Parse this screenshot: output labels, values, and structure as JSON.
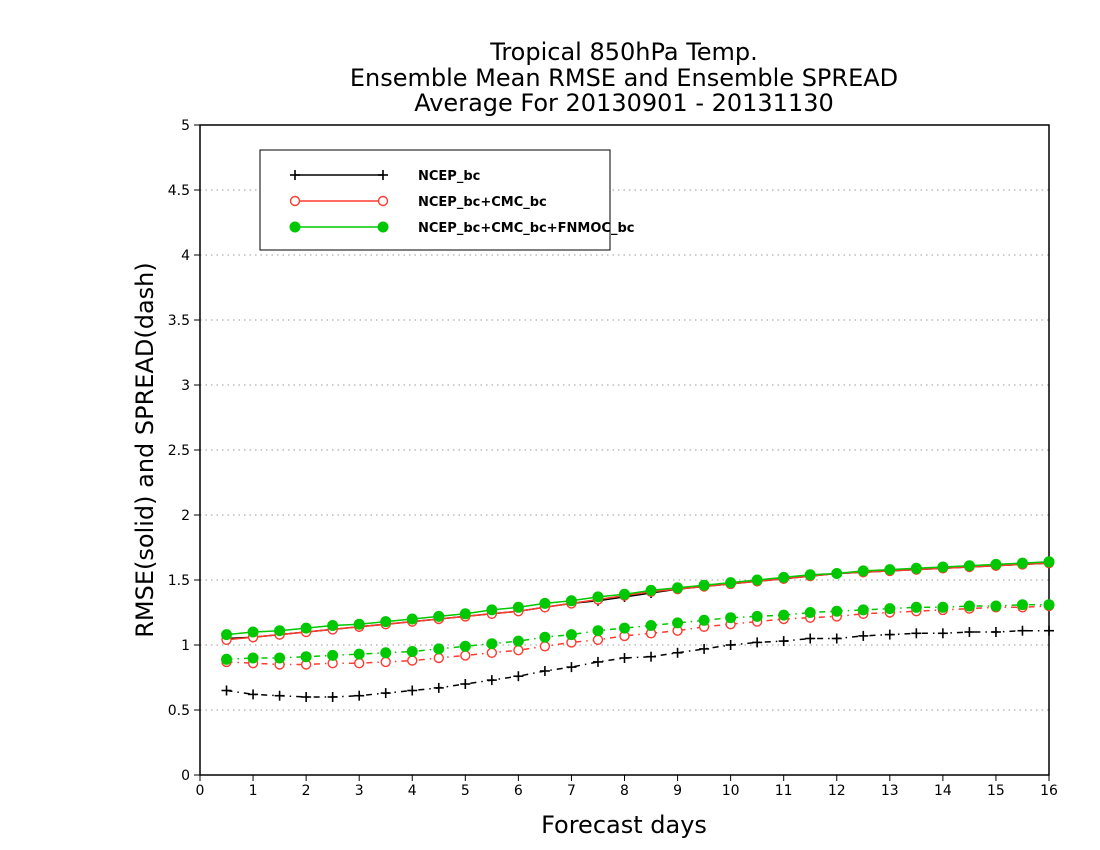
{
  "chart_data": {
    "type": "line",
    "title_lines": [
      "Tropical 850hPa Temp.",
      "Ensemble Mean RMSE and Ensemble SPREAD",
      "Average For 20130901 - 20131130"
    ],
    "xlabel": "Forecast days",
    "ylabel": "RMSE(solid) and SPREAD(dash)",
    "xlim": [
      0,
      16
    ],
    "ylim": [
      0,
      5
    ],
    "xticks": [
      "0",
      "1",
      "2",
      "3",
      "4",
      "5",
      "6",
      "7",
      "8",
      "9",
      "10",
      "11",
      "12",
      "13",
      "14",
      "15",
      "16"
    ],
    "yticks": [
      "0",
      "0.5",
      "1",
      "1.5",
      "2",
      "2.5",
      "3",
      "3.5",
      "4",
      "4.5",
      "5"
    ],
    "grid": true,
    "legend_position": "top-left",
    "x": [
      0.5,
      1,
      1.5,
      2,
      2.5,
      3,
      3.5,
      4,
      4.5,
      5,
      5.5,
      6,
      6.5,
      7,
      7.5,
      8,
      8.5,
      9,
      9.5,
      10,
      10.5,
      11,
      11.5,
      12,
      12.5,
      13,
      13.5,
      14,
      14.5,
      15,
      15.5,
      16
    ],
    "series": [
      {
        "name": "NCEP_bc",
        "color": "#000000",
        "marker": "plus",
        "rmse": [
          1.05,
          1.06,
          1.08,
          1.1,
          1.12,
          1.14,
          1.16,
          1.18,
          1.2,
          1.22,
          1.24,
          1.26,
          1.29,
          1.32,
          1.34,
          1.37,
          1.4,
          1.43,
          1.45,
          1.47,
          1.49,
          1.51,
          1.53,
          1.55,
          1.56,
          1.57,
          1.58,
          1.59,
          1.6,
          1.61,
          1.62,
          1.63
        ],
        "spread": [
          0.65,
          0.62,
          0.61,
          0.6,
          0.6,
          0.61,
          0.63,
          0.65,
          0.67,
          0.7,
          0.73,
          0.76,
          0.8,
          0.83,
          0.87,
          0.9,
          0.91,
          0.94,
          0.97,
          1.0,
          1.02,
          1.03,
          1.05,
          1.05,
          1.07,
          1.08,
          1.09,
          1.09,
          1.1,
          1.1,
          1.11,
          1.11
        ]
      },
      {
        "name": "NCEP_bc+CMC_bc",
        "color": "#ff3b30",
        "marker": "open-circle",
        "rmse": [
          1.04,
          1.06,
          1.08,
          1.1,
          1.12,
          1.14,
          1.16,
          1.18,
          1.2,
          1.22,
          1.24,
          1.26,
          1.29,
          1.32,
          1.35,
          1.38,
          1.41,
          1.43,
          1.45,
          1.47,
          1.49,
          1.51,
          1.53,
          1.55,
          1.56,
          1.57,
          1.58,
          1.59,
          1.6,
          1.61,
          1.62,
          1.63
        ],
        "spread": [
          0.87,
          0.86,
          0.85,
          0.85,
          0.86,
          0.86,
          0.87,
          0.88,
          0.9,
          0.92,
          0.94,
          0.96,
          0.99,
          1.02,
          1.04,
          1.07,
          1.09,
          1.11,
          1.14,
          1.16,
          1.18,
          1.2,
          1.21,
          1.22,
          1.24,
          1.25,
          1.26,
          1.27,
          1.28,
          1.29,
          1.29,
          1.3
        ]
      },
      {
        "name": "NCEP_bc+CMC_bc+FNMOC_bc",
        "color": "#00c800",
        "marker": "filled-circle",
        "rmse": [
          1.08,
          1.1,
          1.11,
          1.13,
          1.15,
          1.16,
          1.18,
          1.2,
          1.22,
          1.24,
          1.27,
          1.29,
          1.32,
          1.34,
          1.37,
          1.39,
          1.42,
          1.44,
          1.46,
          1.48,
          1.5,
          1.52,
          1.54,
          1.55,
          1.57,
          1.58,
          1.59,
          1.6,
          1.61,
          1.62,
          1.63,
          1.64
        ],
        "spread": [
          0.89,
          0.9,
          0.9,
          0.91,
          0.92,
          0.93,
          0.94,
          0.95,
          0.97,
          0.99,
          1.01,
          1.03,
          1.06,
          1.08,
          1.11,
          1.13,
          1.15,
          1.17,
          1.19,
          1.21,
          1.22,
          1.23,
          1.25,
          1.26,
          1.27,
          1.28,
          1.29,
          1.29,
          1.3,
          1.3,
          1.31,
          1.31
        ]
      }
    ]
  }
}
